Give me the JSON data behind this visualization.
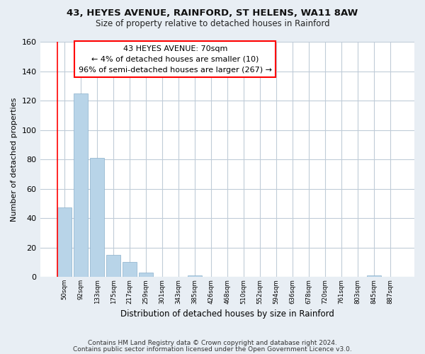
{
  "title1": "43, HEYES AVENUE, RAINFORD, ST HELENS, WA11 8AW",
  "title2": "Size of property relative to detached houses in Rainford",
  "xlabel": "Distribution of detached houses by size in Rainford",
  "ylabel": "Number of detached properties",
  "bar_labels": [
    "50sqm",
    "92sqm",
    "133sqm",
    "175sqm",
    "217sqm",
    "259sqm",
    "301sqm",
    "343sqm",
    "385sqm",
    "426sqm",
    "468sqm",
    "510sqm",
    "552sqm",
    "594sqm",
    "636sqm",
    "678sqm",
    "720sqm",
    "761sqm",
    "803sqm",
    "845sqm",
    "887sqm"
  ],
  "bar_values": [
    47,
    125,
    81,
    15,
    10,
    3,
    0,
    0,
    1,
    0,
    0,
    0,
    0,
    0,
    0,
    0,
    0,
    0,
    0,
    1,
    0
  ],
  "bar_color": "#b8d4e8",
  "bar_edgecolor": "#8ab0cc",
  "annotation_title": "43 HEYES AVENUE: 70sqm",
  "annotation_line1": "← 4% of detached houses are smaller (10)",
  "annotation_line2": "96% of semi-detached houses are larger (267) →",
  "ylim": [
    0,
    160
  ],
  "yticks": [
    0,
    20,
    40,
    60,
    80,
    100,
    120,
    140,
    160
  ],
  "footer1": "Contains HM Land Registry data © Crown copyright and database right 2024.",
  "footer2": "Contains public sector information licensed under the Open Government Licence v3.0.",
  "bg_color": "#e8eef4",
  "plot_bg_color": "#ffffff",
  "grid_color": "#c0ccd8"
}
